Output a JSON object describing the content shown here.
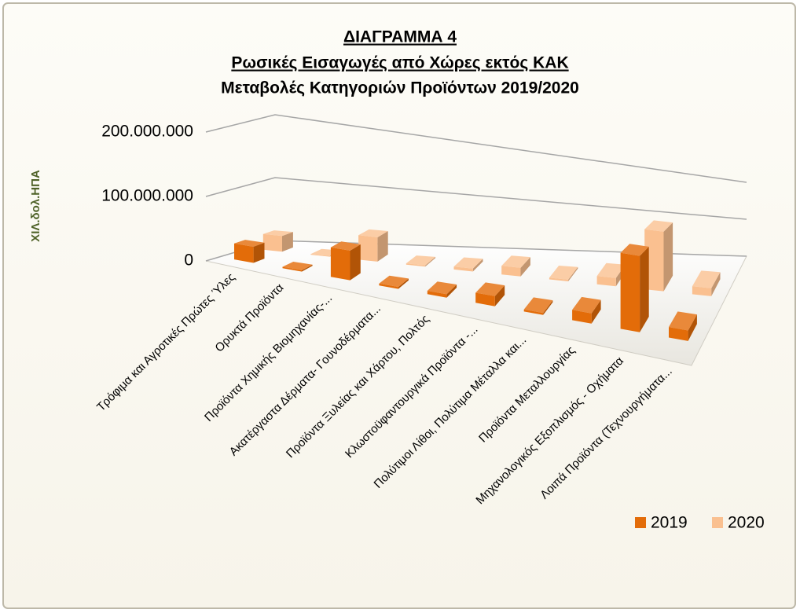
{
  "chart_data": {
    "type": "bar",
    "title": [
      "ΔΙΑΓΡΑΜΜΑ 4",
      "Ρωσικές Εισαγωγές από Χώρες εκτός ΚΑΚ",
      "Μεταβολές Κατηγοριών Προϊόντων 2019/2020"
    ],
    "y_label": "ΧΙΛ.δολ.ΗΠΑ",
    "categories": [
      "Τρόφιμα και Αγροτικές Πρώτες Ύλες",
      "Ορυκτά Προϊόντα",
      "Προϊόντα Χημικής Βιομηχανίας-...",
      "Ακατέργαστα Δέρματα- Γουνοδέρματα...",
      "Προϊόντα Ξυλείας και Χάρτου, Πολτός",
      "Κλωστοϋφαντουργικά Προϊόντα -...",
      "Πολύτιμοι Λίθοι, Πολύτιμα Μέταλλα και...",
      "Προϊόντα Μεταλλουργίας",
      "Μηχανολογικός Εξοπλισμός - Οχήματα",
      "Λοιπά Προϊόντα (Τεχνουργήματα..."
    ],
    "series": [
      {
        "name": "2019",
        "color": "#e36c09",
        "values": [
          25000000,
          2000000,
          45000000,
          3000000,
          5000000,
          15000000,
          3000000,
          15000000,
          110000000,
          15000000
        ]
      },
      {
        "name": "2020",
        "color": "#fac090",
        "values": [
          25000000,
          1000000,
          40000000,
          2000000,
          5000000,
          15000000,
          3000000,
          15000000,
          110000000,
          15000000
        ]
      }
    ],
    "ylim": [
      0,
      200000000
    ],
    "yticks": [
      0,
      {
        "value": 100000000,
        "label": "100.000.000"
      },
      {
        "value": 200000000,
        "label": "200.000.000"
      }
    ],
    "grid": true,
    "legend": "bottom-right"
  }
}
